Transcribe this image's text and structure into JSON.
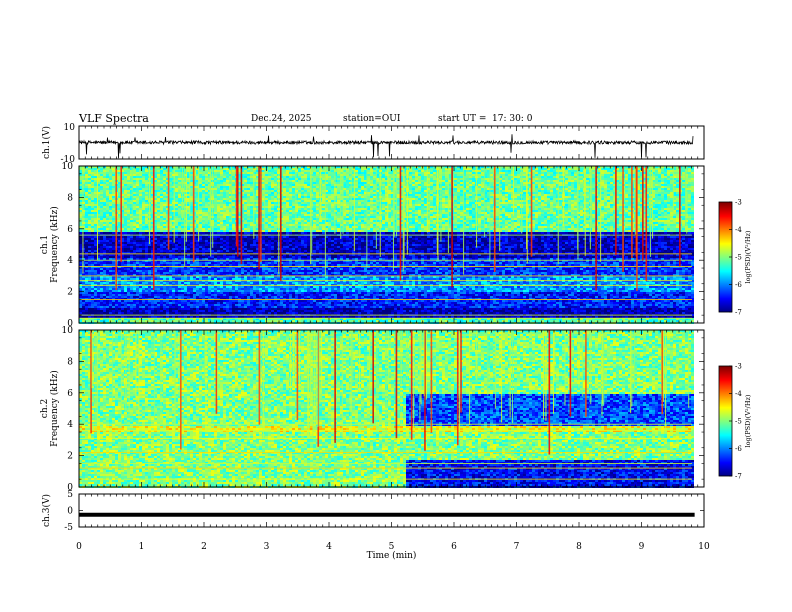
{
  "header": {
    "title": "VLF Spectra",
    "date": "Dec.24, 2025",
    "station": "station=OUI",
    "start_ut_label": "start  UT  =",
    "start_ut_value": "17: 30: 0"
  },
  "colorbar": {
    "label": "log(PSD)(V²/Hz)",
    "ticks": [
      "-3",
      "-4",
      "-5",
      "-6",
      "-7"
    ]
  },
  "chart_data": [
    {
      "type": "line",
      "title": "ch.1(V)",
      "ylabel": "ch.1(V)",
      "ylim": [
        -10,
        10
      ],
      "yticks": [
        "10",
        "-10"
      ],
      "xlim": [
        0,
        10
      ],
      "description_values": {
        "baseline": 0,
        "noise_amplitude": 1,
        "spikes_min": -10,
        "spikes_max": 10
      }
    },
    {
      "type": "heatmap",
      "title": "ch.1 Frequency (kHz)",
      "ylabel_lines": [
        "ch.1",
        "Frequency  (kHz)"
      ],
      "ylim": [
        0,
        10
      ],
      "yticks": [
        "0",
        "2",
        "4",
        "6",
        "8",
        "10"
      ],
      "xlim": [
        0,
        10
      ],
      "zlim": [
        -7,
        -3
      ],
      "bands": [
        {
          "f0": 0,
          "f1": 0.4,
          "level": -5.2
        },
        {
          "f0": 0.4,
          "f1": 1.0,
          "level": -6.8
        },
        {
          "f0": 1.0,
          "f1": 2.0,
          "level": -6.4
        },
        {
          "f0": 2.0,
          "f1": 3.0,
          "level": -5.9
        },
        {
          "f0": 3.0,
          "f1": 4.2,
          "level": -6.3
        },
        {
          "f0": 4.2,
          "f1": 5.8,
          "level": -6.7
        },
        {
          "f0": 5.8,
          "f1": 10.0,
          "level": -5.1
        }
      ]
    },
    {
      "type": "heatmap",
      "title": "ch.2 Frequency (kHz)",
      "ylabel_lines": [
        "ch.2",
        "Frequency  (kHz)"
      ],
      "ylim": [
        0,
        10
      ],
      "yticks": [
        "0",
        "2",
        "4",
        "6",
        "8",
        "10"
      ],
      "xlim": [
        0,
        10
      ],
      "zlim": [
        -7,
        -3
      ],
      "bands": [
        {
          "f0": 0,
          "f1": 3.6,
          "level": -5.0
        },
        {
          "f0": 3.6,
          "f1": 4.0,
          "level": -4.6
        },
        {
          "f0": 4.0,
          "f1": 10.0,
          "level": -5.0
        }
      ],
      "change_time_min": 5.2,
      "after_change_bands": [
        {
          "f0": 0,
          "f1": 1.8,
          "level": -6.5
        },
        {
          "f0": 4.0,
          "f1": 6.0,
          "level": -6.2
        }
      ]
    },
    {
      "type": "line",
      "title": "ch.3(V)",
      "ylabel": "ch.3(V)",
      "ylim": [
        -5,
        5
      ],
      "yticks": [
        "5",
        "0",
        "-5"
      ],
      "xlim": [
        0,
        10
      ],
      "x_end": 9.85,
      "values_constant": -1.3
    }
  ],
  "xaxis": {
    "label": "Time  (min)",
    "ticks": [
      "0",
      "1",
      "2",
      "3",
      "4",
      "5",
      "6",
      "7",
      "8",
      "9",
      "10"
    ]
  }
}
